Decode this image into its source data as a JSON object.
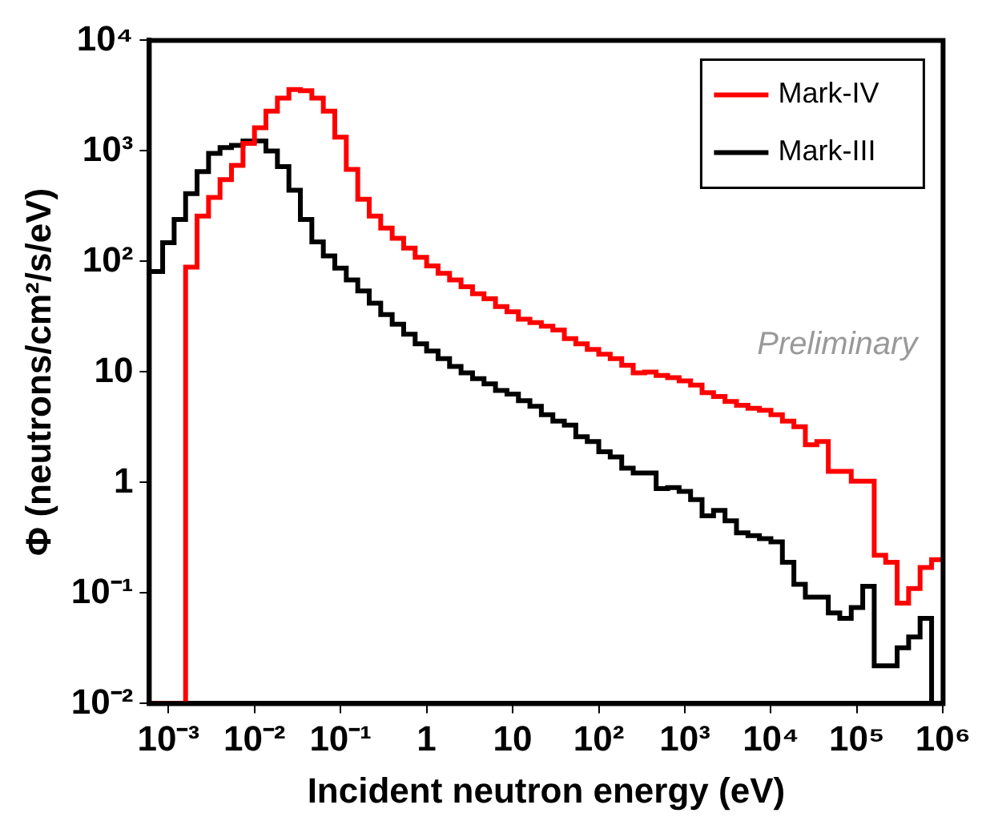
{
  "chart_data": {
    "type": "histogram",
    "xlabel": "Incident neutron energy (eV)",
    "ylabel": "Φ (neutrons/cm²/s/eV)",
    "bins": [
      0.000631,
      0.0008577,
      0.001166,
      0.001585,
      0.002154,
      0.002929,
      0.003981,
      0.00541,
      0.007356,
      0.01,
      0.01359,
      0.01848,
      0.02512,
      0.03415,
      0.04642,
      0.0631,
      0.08577,
      0.1166,
      0.1585,
      0.2154,
      0.2929,
      0.3981,
      0.541,
      0.7356,
      1,
      1.359,
      1.848,
      2.512,
      3.415,
      4.642,
      6.31,
      8.577,
      11.66,
      15.85,
      21.54,
      29.29,
      39.81,
      54.1,
      73.56,
      100,
      135.9,
      184.8,
      251.2,
      341.5,
      464.2,
      631,
      857.7,
      1166,
      1585,
      2154,
      2929,
      3981,
      5410,
      7356,
      10000,
      13590,
      18480,
      25120,
      34150,
      46420,
      63100,
      85770,
      116600,
      158500,
      215400,
      292900,
      398100,
      541000,
      735600,
      1000000
    ],
    "series": [
      {
        "name": "Mark-IV",
        "color": "#ff0000",
        "values": [
          0.01,
          0.01,
          0.01,
          89,
          257,
          380,
          550,
          740,
          1170,
          1620,
          2290,
          3000,
          3600,
          3500,
          3000,
          2290,
          1330,
          680,
          365,
          257,
          200,
          162,
          132,
          109,
          91,
          78,
          68,
          59,
          51,
          46,
          39,
          35,
          30,
          28,
          26,
          24,
          20,
          18,
          16,
          14.5,
          13.2,
          11.5,
          9.8,
          10,
          9.3,
          8.9,
          8.3,
          7.6,
          6.5,
          6,
          5.4,
          5,
          4.7,
          4.5,
          4.1,
          3.6,
          3.2,
          2.2,
          2.35,
          1.26,
          1.26,
          1.03,
          1.03,
          0.22,
          0.19,
          0.081,
          0.11,
          0.17,
          0.2
        ]
      },
      {
        "name": "Mark-III",
        "color": "#000000",
        "values": [
          81,
          148,
          240,
          410,
          650,
          950,
          1070,
          1120,
          1230,
          1230,
          1000,
          720,
          440,
          240,
          150,
          112,
          87,
          68,
          54,
          42,
          33,
          27,
          22,
          18,
          15.5,
          13.2,
          11.2,
          9.8,
          8.7,
          7.8,
          6.8,
          6.3,
          5.5,
          4.9,
          4.1,
          3.6,
          3.3,
          2.6,
          2.35,
          1.9,
          1.7,
          1.35,
          1.22,
          1.22,
          0.88,
          0.9,
          0.83,
          0.7,
          0.5,
          0.56,
          0.45,
          0.35,
          0.33,
          0.31,
          0.29,
          0.19,
          0.12,
          0.092,
          0.092,
          0.066,
          0.059,
          0.074,
          0.115,
          0.022,
          0.022,
          0.032,
          0.04,
          0.059,
          0.01
        ]
      }
    ],
    "log": "xy",
    "xlim": [
      0.000631,
      1000000
    ],
    "ylim": [
      0.01,
      10000
    ],
    "xticks": [
      {
        "value": 0.001,
        "label": "10⁻³"
      },
      {
        "value": 0.01,
        "label": "10⁻²"
      },
      {
        "value": 0.1,
        "label": "10⁻¹"
      },
      1,
      10,
      {
        "value": 100,
        "label": "10²"
      },
      {
        "value": 1000,
        "label": "10³"
      },
      {
        "value": 10000,
        "label": "10⁴"
      },
      {
        "value": 100000,
        "label": "10⁵"
      },
      {
        "value": 1000000,
        "label": "10⁶"
      }
    ],
    "yticks": [
      {
        "value": 0.01,
        "label": "10⁻²"
      },
      {
        "value": 0.1,
        "label": "10⁻¹"
      },
      1,
      10,
      {
        "value": 100,
        "label": "10²"
      },
      {
        "value": 1000,
        "label": "10³"
      },
      {
        "value": 10000,
        "label": "10⁴"
      }
    ],
    "legend": "top right",
    "grid": false,
    "annotations": [
      "Preliminary"
    ]
  }
}
